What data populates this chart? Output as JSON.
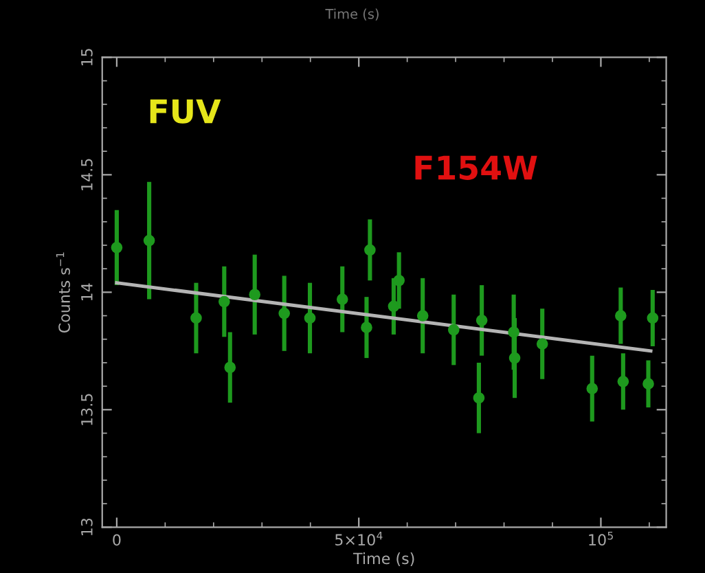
{
  "chart_data": {
    "type": "scatter",
    "xlabel": "Time (s)",
    "ylabel": "Counts s$^{−1}$",
    "annotations": [
      "FUV",
      "F154W",
      "Time (s)"
    ],
    "xlim": [
      -3000,
      113500
    ],
    "ylim": [
      13,
      15
    ],
    "xticks": [
      0,
      {
        "value": 50000,
        "label": "5×10$^{4}$"
      },
      {
        "value": 100000,
        "label": "10$^{5}$"
      }
    ],
    "yticks": [
      13,
      13.5,
      14,
      14.5,
      15
    ],
    "grid": false,
    "marker": "circle",
    "series": [
      {
        "color": "#1e9a1e",
        "x": [
          0,
          6700,
          16400,
          22200,
          23400,
          28500,
          34600,
          39900,
          46600,
          51600,
          52300,
          57200,
          58300,
          63200,
          69600,
          75400,
          74800,
          82000,
          82200,
          87900,
          98200,
          104100,
          104600,
          109800,
          110700
        ],
        "values": [
          14.19,
          14.22,
          13.89,
          13.96,
          13.68,
          13.99,
          13.91,
          13.89,
          13.97,
          13.85,
          14.18,
          13.94,
          14.05,
          13.9,
          13.84,
          13.88,
          13.55,
          13.83,
          13.72,
          13.78,
          13.59,
          13.9,
          13.62,
          13.61,
          13.89
        ],
        "errors": [
          0.16,
          0.25,
          0.15,
          0.15,
          0.15,
          0.17,
          0.16,
          0.15,
          0.14,
          0.13,
          0.13,
          0.12,
          0.12,
          0.16,
          0.15,
          0.15,
          0.15,
          0.16,
          0.17,
          0.15,
          0.14,
          0.12,
          0.12,
          0.1,
          0.12
        ]
      },
      {
        "type": "line",
        "color": "#b4b4b4",
        "marker": "none",
        "x": [
          0,
          110300
        ],
        "values": [
          14.04,
          13.75
        ]
      }
    ]
  }
}
